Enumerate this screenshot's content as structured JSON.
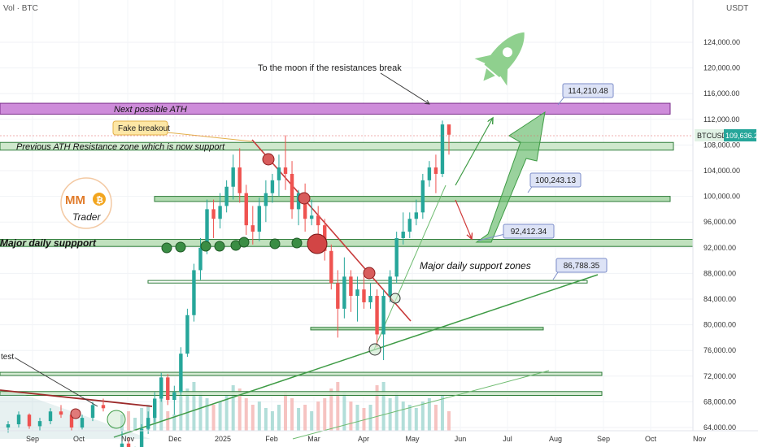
{
  "header": {
    "indicator": "Vol · BTC",
    "currency": "USDT"
  },
  "chart_data": {
    "type": "candlestick",
    "symbol": "BTCUSDT",
    "last_price": "109,636.28",
    "y_axis": {
      "ticks": [
        "124,000.00",
        "120,000.00",
        "116,000.00",
        "112,000.00",
        "108,000.00",
        "104,000.00",
        "100,000.00",
        "96,000.00",
        "92,000.00",
        "88,000.00",
        "84,000.00",
        "80,000.00",
        "76,000.00",
        "72,000.00",
        "68,000.00",
        "64,000.00"
      ],
      "range": [
        63000,
        128000
      ]
    },
    "x_axis": {
      "ticks": [
        "Sep",
        "Oct",
        "Nov",
        "Dec",
        "2025",
        "Feb",
        "Mar",
        "Apr",
        "May",
        "Jun",
        "Jul",
        "Aug",
        "Sep",
        "Oct",
        "Nov"
      ]
    },
    "zones": [
      {
        "label": "Next possible ATH",
        "low": 112800,
        "high": 114500
      },
      {
        "label": "Previous ATH Resistance zone which is now support",
        "low": 107200,
        "high": 108400
      },
      {
        "label": "",
        "low": 99200,
        "high": 100000
      },
      {
        "label": "Major daily suppport",
        "low": 92200,
        "high": 93300
      },
      {
        "label": "",
        "low": 86500,
        "high": 86900
      },
      {
        "label": "",
        "low": 79200,
        "high": 79600
      },
      {
        "label": "",
        "low": 72100,
        "high": 72600
      },
      {
        "label": "",
        "low": 69000,
        "high": 69600
      }
    ],
    "annotations": {
      "moon": "To the moon if the resistances break",
      "fake_breakout": "Fake breakout",
      "major_support": "Major daily support zones",
      "retest": "test"
    },
    "price_callouts": [
      "114,210.48",
      "100,243.13",
      "92,412.34",
      "86,788.35"
    ],
    "candles": [
      [
        58,
        63.5,
        57.5,
        61.5
      ],
      [
        61.5,
        62.5,
        58,
        59
      ],
      [
        59,
        61,
        57.8,
        60.5
      ],
      [
        60.5,
        64.5,
        60,
        63.8
      ],
      [
        63.8,
        66.5,
        63,
        65.5
      ],
      [
        65.5,
        69.5,
        64.8,
        68.5
      ],
      [
        68.5,
        72.5,
        68,
        71.8
      ],
      [
        71.8,
        72.3,
        67.5,
        68.3
      ],
      [
        68.3,
        70.5,
        66,
        69.5
      ],
      [
        69.5,
        76.5,
        69,
        75.5
      ],
      [
        75.5,
        82.5,
        75,
        81.5
      ],
      [
        81.5,
        89.5,
        80.5,
        88.5
      ],
      [
        88.5,
        93.5,
        87,
        92
      ],
      [
        92,
        99.5,
        91,
        98
      ],
      [
        98,
        99.5,
        93.5,
        96.5
      ],
      [
        96.5,
        100.5,
        95,
        98.5
      ],
      [
        98.5,
        102.5,
        97.5,
        101.5
      ],
      [
        101.5,
        106.5,
        99.5,
        104.5
      ],
      [
        104.5,
        107.5,
        99,
        100.5
      ],
      [
        100.5,
        101.8,
        94,
        95.5
      ],
      [
        95.5,
        98.5,
        92.5,
        94.5
      ],
      [
        94.5,
        99.8,
        93,
        98.5
      ],
      [
        98.5,
        102.5,
        96,
        100.5
      ],
      [
        100.5,
        103.5,
        99,
        102.5
      ],
      [
        102.5,
        106.5,
        100,
        104.5
      ],
      [
        104.5,
        109.5,
        101,
        103.5
      ],
      [
        103.5,
        105.5,
        96.5,
        98
      ],
      [
        98,
        101,
        95.5,
        100.5
      ],
      [
        100.5,
        102,
        94.5,
        96.5
      ],
      [
        96.5,
        99.5,
        95.5,
        97
      ],
      [
        97,
        98.5,
        91.5,
        95.5
      ],
      [
        95.5,
        96.5,
        90,
        91.5
      ],
      [
        91.5,
        92.5,
        85.5,
        86.5
      ],
      [
        86.5,
        88.5,
        78,
        82.5
      ],
      [
        82.5,
        90.5,
        81,
        87.5
      ],
      [
        87.5,
        88.5,
        82,
        84.5
      ],
      [
        84.5,
        87.5,
        80.5,
        85.5
      ],
      [
        85.5,
        88.5,
        82.5,
        83.5
      ],
      [
        83.5,
        86.5,
        82.5,
        84.5
      ],
      [
        84.5,
        85.5,
        76.5,
        78.5
      ],
      [
        78.5,
        85.5,
        74.5,
        84.5
      ],
      [
        84.5,
        88.5,
        83.5,
        87.5
      ],
      [
        87.5,
        94.5,
        86.5,
        93.5
      ],
      [
        93.5,
        97.5,
        92.5,
        94.5
      ],
      [
        94.5,
        97.5,
        93.5,
        96.5
      ],
      [
        96.5,
        99.5,
        95.5,
        97.5
      ],
      [
        97.5,
        103.5,
        96.5,
        102.5
      ],
      [
        102.5,
        105.5,
        101.5,
        104.5
      ],
      [
        104.5,
        106.5,
        100.5,
        103.5
      ],
      [
        103.5,
        111.8,
        103,
        111.2
      ],
      [
        111.2,
        110.8,
        106.5,
        109.6
      ]
    ],
    "volumes": [
      0.5,
      0.6,
      0.4,
      0.7,
      0.8,
      0.9,
      1.0,
      0.6,
      0.5,
      1.1,
      1.3,
      1.5,
      1.2,
      1.0,
      0.8,
      0.9,
      1.1,
      1.4,
      1.3,
      1.0,
      0.8,
      0.9,
      0.7,
      0.6,
      0.8,
      1.2,
      1.0,
      0.7,
      0.8,
      0.6,
      0.9,
      1.0,
      1.3,
      1.5,
      1.2,
      0.9,
      0.8,
      0.7,
      0.8,
      1.4,
      1.5,
      1.0,
      1.2,
      0.9,
      0.8,
      0.7,
      0.9,
      1.0,
      0.8,
      1.1,
      0.6
    ]
  }
}
